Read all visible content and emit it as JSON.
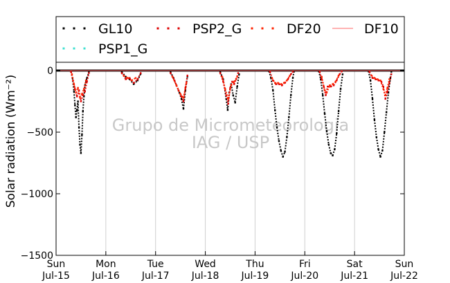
{
  "chart_data": {
    "type": "scatter",
    "ylabel": "Solar radiation (Wm⁻²)",
    "ylim": [
      -1500,
      60
    ],
    "yticks": [
      0,
      -500,
      -1000,
      -1500
    ],
    "xlim": [
      0,
      7
    ],
    "xticks": [
      {
        "day": 0,
        "weekday": "Sun",
        "date": "Jul-15"
      },
      {
        "day": 1,
        "weekday": "Mon",
        "date": "Jul-16"
      },
      {
        "day": 2,
        "weekday": "Tue",
        "date": "Jul-17"
      },
      {
        "day": 3,
        "weekday": "Wed",
        "date": "Jul-18"
      },
      {
        "day": 4,
        "weekday": "Thu",
        "date": "Jul-19"
      },
      {
        "day": 5,
        "weekday": "Fri",
        "date": "Jul-20"
      },
      {
        "day": 6,
        "weekday": "Sat",
        "date": "Jul-21"
      },
      {
        "day": 7,
        "weekday": "Sun",
        "date": "Jul-22"
      }
    ],
    "grid": "vertical",
    "legend_position": "top",
    "watermark": [
      "Grupo de Micrometeorologia",
      "IAG / USP"
    ],
    "series": [
      {
        "name": "GL10",
        "marker": "dotted",
        "color": "#000000",
        "points": [
          [
            0.3,
            -8
          ],
          [
            0.33,
            -60
          ],
          [
            0.36,
            -170
          ],
          [
            0.38,
            -280
          ],
          [
            0.4,
            -380
          ],
          [
            0.42,
            -320
          ],
          [
            0.44,
            -250
          ],
          [
            0.46,
            -460
          ],
          [
            0.48,
            -600
          ],
          [
            0.5,
            -670
          ],
          [
            0.52,
            -520
          ],
          [
            0.54,
            -330
          ],
          [
            0.56,
            -210
          ],
          [
            0.58,
            -120
          ],
          [
            0.62,
            -60
          ],
          [
            0.66,
            -15
          ],
          [
            1.32,
            -10
          ],
          [
            1.4,
            -50
          ],
          [
            1.48,
            -70
          ],
          [
            1.56,
            -110
          ],
          [
            1.64,
            -80
          ],
          [
            1.7,
            -25
          ],
          [
            2.3,
            -10
          ],
          [
            2.36,
            -60
          ],
          [
            2.42,
            -120
          ],
          [
            2.48,
            -180
          ],
          [
            2.52,
            -230
          ],
          [
            2.56,
            -310
          ],
          [
            2.6,
            -160
          ],
          [
            2.64,
            -50
          ],
          [
            3.3,
            -10
          ],
          [
            3.36,
            -70
          ],
          [
            3.42,
            -230
          ],
          [
            3.45,
            -320
          ],
          [
            3.48,
            -180
          ],
          [
            3.52,
            -110
          ],
          [
            3.56,
            -200
          ],
          [
            3.6,
            -260
          ],
          [
            3.64,
            -130
          ],
          [
            3.68,
            -30
          ],
          [
            4.28,
            -5
          ],
          [
            4.32,
            -60
          ],
          [
            4.36,
            -160
          ],
          [
            4.4,
            -320
          ],
          [
            4.44,
            -460
          ],
          [
            4.48,
            -570
          ],
          [
            4.52,
            -650
          ],
          [
            4.56,
            -700
          ],
          [
            4.6,
            -660
          ],
          [
            4.64,
            -540
          ],
          [
            4.68,
            -380
          ],
          [
            4.72,
            -200
          ],
          [
            4.76,
            -60
          ],
          [
            4.78,
            -10
          ],
          [
            5.28,
            -5
          ],
          [
            5.32,
            -70
          ],
          [
            5.36,
            -200
          ],
          [
            5.4,
            -350
          ],
          [
            5.44,
            -490
          ],
          [
            5.48,
            -600
          ],
          [
            5.52,
            -670
          ],
          [
            5.56,
            -690
          ],
          [
            5.6,
            -640
          ],
          [
            5.64,
            -510
          ],
          [
            5.68,
            -330
          ],
          [
            5.72,
            -150
          ],
          [
            5.76,
            -30
          ],
          [
            6.28,
            -5
          ],
          [
            6.32,
            -80
          ],
          [
            6.36,
            -230
          ],
          [
            6.4,
            -400
          ],
          [
            6.44,
            -540
          ],
          [
            6.48,
            -640
          ],
          [
            6.52,
            -700
          ],
          [
            6.56,
            -650
          ],
          [
            6.6,
            -500
          ],
          [
            6.64,
            -340
          ],
          [
            6.68,
            -180
          ],
          [
            6.72,
            -60
          ],
          [
            6.74,
            -10
          ]
        ]
      },
      {
        "name": "PSP1_G",
        "marker": "dotted",
        "color": "#40e0d0",
        "points": []
      },
      {
        "name": "PSP2_G",
        "marker": "dotted",
        "color": "#dd0000",
        "points": [
          [
            0.3,
            -10
          ],
          [
            0.34,
            -80
          ],
          [
            0.38,
            -150
          ],
          [
            0.42,
            -210
          ],
          [
            0.46,
            -160
          ],
          [
            0.5,
            -250
          ],
          [
            0.54,
            -200
          ],
          [
            0.58,
            -170
          ],
          [
            0.62,
            -90
          ],
          [
            0.66,
            -20
          ],
          [
            1.32,
            -20
          ],
          [
            1.4,
            -70
          ],
          [
            1.48,
            -60
          ],
          [
            1.56,
            -100
          ],
          [
            1.64,
            -70
          ],
          [
            1.7,
            -20
          ],
          [
            2.3,
            -20
          ],
          [
            2.38,
            -80
          ],
          [
            2.46,
            -160
          ],
          [
            2.52,
            -210
          ],
          [
            2.56,
            -250
          ],
          [
            2.6,
            -140
          ],
          [
            2.64,
            -40
          ],
          [
            3.3,
            -20
          ],
          [
            3.36,
            -90
          ],
          [
            3.42,
            -200
          ],
          [
            3.46,
            -270
          ],
          [
            3.5,
            -140
          ],
          [
            3.54,
            -90
          ],
          [
            3.58,
            -110
          ],
          [
            3.62,
            -70
          ],
          [
            3.66,
            -20
          ],
          [
            4.3,
            -10
          ],
          [
            4.36,
            -80
          ],
          [
            4.42,
            -110
          ],
          [
            4.48,
            -110
          ],
          [
            4.54,
            -120
          ],
          [
            4.6,
            -100
          ],
          [
            4.66,
            -70
          ],
          [
            4.72,
            -30
          ],
          [
            4.76,
            -10
          ],
          [
            5.3,
            -10
          ],
          [
            5.34,
            -70
          ],
          [
            5.38,
            -130
          ],
          [
            5.42,
            -200
          ],
          [
            5.46,
            -130
          ],
          [
            5.52,
            -130
          ],
          [
            5.58,
            -120
          ],
          [
            5.64,
            -80
          ],
          [
            5.7,
            -30
          ],
          [
            5.74,
            -8
          ],
          [
            6.3,
            -10
          ],
          [
            6.36,
            -60
          ],
          [
            6.42,
            -70
          ],
          [
            6.48,
            -80
          ],
          [
            6.54,
            -90
          ],
          [
            6.58,
            -130
          ],
          [
            6.62,
            -230
          ],
          [
            6.66,
            -170
          ],
          [
            6.7,
            -100
          ],
          [
            6.74,
            -30
          ]
        ]
      },
      {
        "name": "DF20",
        "marker": "dotted",
        "color": "#ff2200",
        "points": [
          [
            0.32,
            -30
          ],
          [
            0.36,
            -110
          ],
          [
            0.4,
            -180
          ],
          [
            0.44,
            -140
          ],
          [
            0.48,
            -220
          ],
          [
            0.52,
            -190
          ],
          [
            0.56,
            -150
          ],
          [
            0.6,
            -80
          ],
          [
            1.36,
            -40
          ],
          [
            1.44,
            -60
          ],
          [
            1.52,
            -80
          ],
          [
            1.6,
            -60
          ],
          [
            2.34,
            -50
          ],
          [
            2.42,
            -120
          ],
          [
            2.5,
            -190
          ],
          [
            2.56,
            -220
          ],
          [
            2.62,
            -100
          ],
          [
            3.34,
            -50
          ],
          [
            3.4,
            -150
          ],
          [
            3.46,
            -230
          ],
          [
            3.52,
            -120
          ],
          [
            3.58,
            -90
          ],
          [
            3.64,
            -50
          ],
          [
            4.34,
            -60
          ],
          [
            4.4,
            -100
          ],
          [
            4.46,
            -100
          ],
          [
            4.52,
            -110
          ],
          [
            4.58,
            -100
          ],
          [
            4.64,
            -80
          ],
          [
            4.7,
            -40
          ],
          [
            5.34,
            -50
          ],
          [
            5.4,
            -160
          ],
          [
            5.44,
            -180
          ],
          [
            5.5,
            -120
          ],
          [
            5.56,
            -110
          ],
          [
            5.62,
            -90
          ],
          [
            5.68,
            -40
          ],
          [
            6.34,
            -40
          ],
          [
            6.4,
            -60
          ],
          [
            6.46,
            -70
          ],
          [
            6.52,
            -80
          ],
          [
            6.58,
            -150
          ],
          [
            6.62,
            -200
          ],
          [
            6.66,
            -140
          ],
          [
            6.7,
            -70
          ]
        ]
      },
      {
        "name": "DF10",
        "marker": "line",
        "color": "#ff6666",
        "points": [
          [
            0.0,
            0
          ],
          [
            7.0,
            0
          ]
        ]
      }
    ]
  }
}
